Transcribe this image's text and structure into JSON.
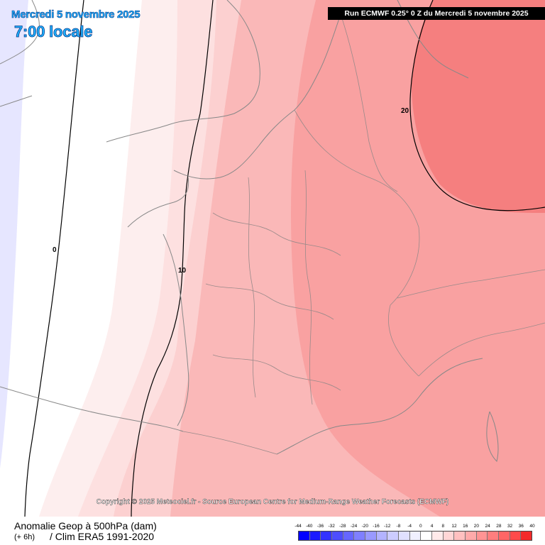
{
  "header": {
    "date": "Mercredi 5 novembre 2025",
    "time": "7:00 locale",
    "run": "Run ECMWF 0.25° 0 Z du Mercredi 5 novembre 2025"
  },
  "map": {
    "contour_labels": [
      "0",
      "10",
      "20"
    ],
    "copyright": "Copyright © 2025 Meteociel.fr - Source European Centre for Medium-Range Weather Forecasts (ECMWF)"
  },
  "footer": {
    "title": "Anomalie Geop à 500hPa (dam)",
    "offset": "(+ 6h)",
    "clim": "/ Clim ERA5 1991-2020"
  },
  "legend": {
    "labels": [
      "-44",
      "-40",
      "-36",
      "-32",
      "-28",
      "-24",
      "-20",
      "-16",
      "-12",
      "-8",
      "-4",
      "0",
      "4",
      "8",
      "12",
      "16",
      "20",
      "24",
      "28",
      "32",
      "36",
      "40"
    ],
    "colors": [
      "#0000ff",
      "#1a1aff",
      "#3333ff",
      "#4d4dff",
      "#6666ff",
      "#7f7fff",
      "#9999ff",
      "#b3b3ff",
      "#ccccff",
      "#e0e0ff",
      "#f0f0ff",
      "#ffffff",
      "#ffeaea",
      "#ffd6d6",
      "#ffc0c0",
      "#ffaaaa",
      "#ff9494",
      "#ff7e7e",
      "#ff6666",
      "#ff4a4a",
      "#f42a2a"
    ]
  }
}
